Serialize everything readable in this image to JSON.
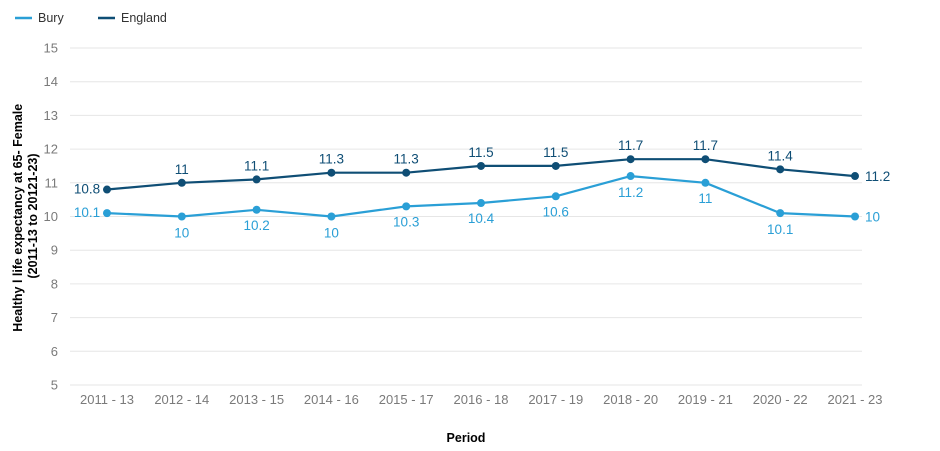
{
  "chart_data": {
    "type": "line",
    "title": "",
    "xlabel": "Period",
    "ylabel_lines": [
      "Healthy l life expectancy at 65- Female",
      "(2011-13 to 20121-23)"
    ],
    "ylim": [
      5,
      15
    ],
    "yticks": [
      "5",
      "6",
      "7",
      "8",
      "9",
      "10",
      "11",
      "12",
      "13",
      "14",
      "15"
    ],
    "grid": true,
    "legend_position": "top-left",
    "categories": [
      "2011 - 13",
      "2012 - 14",
      "2013 - 15",
      "2014 - 16",
      "2015 - 17",
      "2016 - 18",
      "2017 - 19",
      "2018 - 20",
      "2019 - 21",
      "2020 - 22",
      "2021 - 23"
    ],
    "series": [
      {
        "name": "Bury",
        "color": "#2a9fd6",
        "values": [
          10.1,
          10,
          10.2,
          10,
          10.3,
          10.4,
          10.6,
          11.2,
          11,
          10.1,
          10
        ],
        "labels": [
          "10.1",
          "10",
          "10.2",
          "10",
          "10.3",
          "10.4",
          "10.6",
          "11.2",
          "11",
          "10.1",
          "10"
        ]
      },
      {
        "name": "England",
        "color": "#0f4e75",
        "values": [
          10.8,
          11,
          11.1,
          11.3,
          11.3,
          11.5,
          11.5,
          11.7,
          11.7,
          11.4,
          11.2
        ],
        "labels": [
          "10.8",
          "11",
          "11.1",
          "11.3",
          "11.3",
          "11.5",
          "11.5",
          "11.7",
          "11.7",
          "11.4",
          "11.2"
        ]
      }
    ]
  }
}
